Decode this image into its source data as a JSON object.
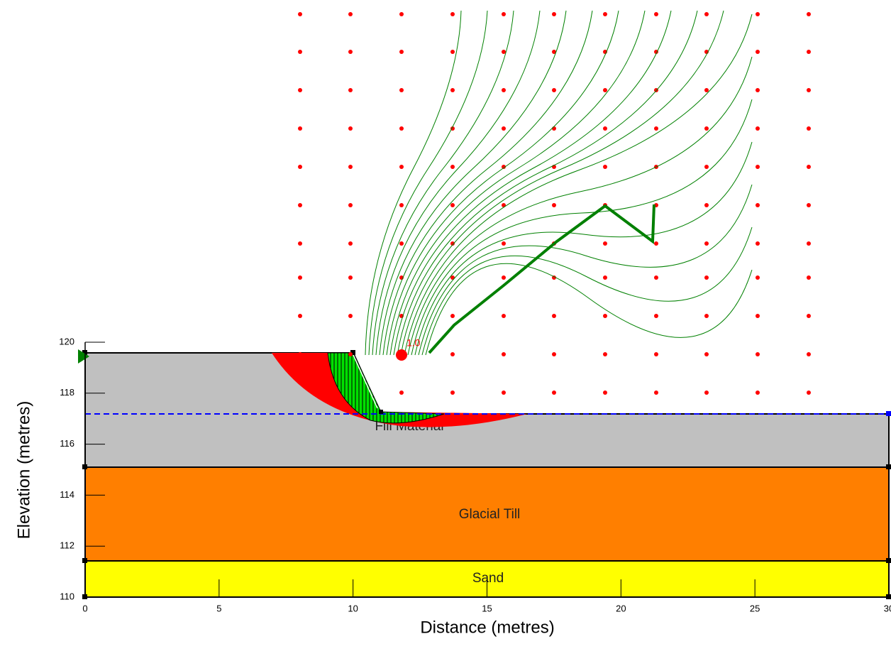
{
  "x_axis": {
    "label": "Distance (metres)",
    "ticks": [
      0,
      5,
      10,
      15,
      20,
      25,
      30
    ]
  },
  "y_axis": {
    "label": "Elevation (metres)",
    "ticks": [
      110,
      112,
      114,
      116,
      118,
      120
    ]
  },
  "materials": [
    {
      "name": "Fill Material"
    },
    {
      "name": "Glacial Till"
    },
    {
      "name": "Sand"
    }
  ],
  "factor_of_safety": "1.0"
}
